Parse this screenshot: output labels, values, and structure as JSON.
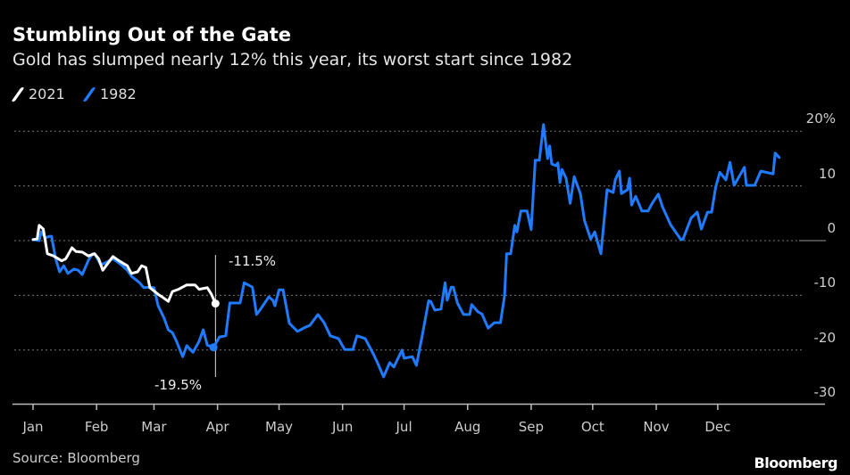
{
  "chart_data": {
    "type": "line",
    "title": "Stumbling Out of the Gate",
    "subtitle": "Gold has slumped nearly 12% this year, its worst start since 1982",
    "xlabel": "",
    "ylabel": "",
    "x_unit": "day of year",
    "ylim": [
      -30,
      20
    ],
    "y_ticks": [
      "20%",
      "10",
      "0",
      "-10",
      "-20",
      "-30"
    ],
    "y_tick_values": [
      20,
      10,
      0,
      -10,
      -20,
      -30
    ],
    "x_ticks": [
      "Jan",
      "Feb",
      "Mar",
      "Apr",
      "May",
      "Jun",
      "Jul",
      "Aug",
      "Sep",
      "Oct",
      "Nov",
      "Dec"
    ],
    "x_tick_days": [
      0,
      31,
      59,
      90,
      120,
      151,
      181,
      212,
      243,
      273,
      304,
      334
    ],
    "grid": true,
    "legend_position": "top-left",
    "series": [
      {
        "name": "2021",
        "color": "#ffffff",
        "x": [
          0,
          2,
          3,
          5,
          7,
          10,
          14,
          16,
          19,
          21,
          24,
          27,
          30,
          32,
          34,
          36,
          39,
          42,
          46,
          48,
          51,
          53,
          55,
          57,
          61,
          63,
          66,
          68,
          71,
          75,
          79,
          81,
          85,
          87,
          89
        ],
        "values": [
          0.2,
          0.3,
          2.8,
          2.1,
          -2.4,
          -2.8,
          -3.7,
          -3.3,
          -1.3,
          -2,
          -2.1,
          -2.8,
          -2.4,
          -3.3,
          -5.4,
          -4.4,
          -2.9,
          -3.7,
          -4.6,
          -6,
          -5.7,
          -4.6,
          -4.9,
          -8.6,
          -9.8,
          -10.3,
          -11.1,
          -9.3,
          -8.9,
          -8.1,
          -8.1,
          -8.9,
          -8.6,
          -9.8,
          -11.5
        ]
      },
      {
        "name": "1982",
        "color": "#1f7bff",
        "x": [
          0,
          3,
          4,
          6,
          8,
          9,
          11,
          13,
          15,
          17,
          20,
          22,
          24,
          27,
          29,
          30,
          33,
          35,
          39,
          43,
          46,
          48,
          52,
          54,
          57,
          59,
          61,
          64,
          66,
          68,
          70,
          73,
          75,
          78,
          81,
          83,
          85,
          88,
          91,
          94,
          96,
          101,
          103,
          107,
          109,
          111,
          115,
          117,
          118,
          120,
          122,
          125,
          129,
          133,
          135,
          139,
          142,
          145,
          149,
          152,
          156,
          158,
          162,
          166,
          168,
          171,
          174,
          176,
          180,
          181,
          185,
          187,
          190,
          193,
          194,
          196,
          199,
          201,
          202,
          204,
          205,
          207,
          210,
          213,
          214,
          217,
          219,
          222,
          225,
          228,
          230,
          231,
          233,
          235,
          236,
          238,
          241,
          243,
          245,
          247,
          249,
          251,
          252,
          253,
          255,
          256,
          257,
          258,
          260,
          262,
          264,
          267,
          269,
          272,
          274,
          277,
          280,
          283,
          284,
          286,
          287,
          290,
          291,
          292,
          294,
          297,
          300,
          302,
          305,
          307,
          311,
          316,
          317,
          321,
          324,
          326,
          329,
          331,
          333,
          335,
          338,
          340,
          342,
          347,
          348,
          352,
          355,
          361,
          362,
          364
        ],
        "values": [
          0.2,
          0,
          1.6,
          0.5,
          0.8,
          0.8,
          -3.3,
          -5.7,
          -4.6,
          -6,
          -5.2,
          -5.4,
          -6.2,
          -3.6,
          -2.4,
          -2.4,
          -4.4,
          -4.1,
          -3.3,
          -4.4,
          -5.4,
          -6.5,
          -7.7,
          -8.6,
          -8.5,
          -8.6,
          -11.9,
          -14.2,
          -16.3,
          -16.8,
          -18.4,
          -21.2,
          -19.2,
          -20.4,
          -18.4,
          -16.3,
          -19.1,
          -19.5,
          -17.6,
          -17.4,
          -11.4,
          -11.4,
          -7.7,
          -8.5,
          -13.5,
          -12.5,
          -10.3,
          -10.9,
          -11.9,
          -9,
          -9,
          -15.1,
          -16.6,
          -15.8,
          -15.5,
          -13.5,
          -15,
          -17.4,
          -17.9,
          -19.9,
          -19.9,
          -17.4,
          -17.9,
          -20.7,
          -22.3,
          -24.9,
          -22.3,
          -23.1,
          -20,
          -21.5,
          -21.2,
          -22.8,
          -17.1,
          -11,
          -11.1,
          -12.7,
          -12.5,
          -7.7,
          -10.9,
          -8.5,
          -8.5,
          -11.4,
          -13.5,
          -13.5,
          -11.7,
          -13,
          -13.4,
          -16,
          -15,
          -15,
          -10.1,
          -2.4,
          -2.4,
          2.8,
          1.6,
          5.4,
          5.4,
          2,
          14.7,
          14.7,
          21.2,
          15,
          17.3,
          14,
          13.7,
          14.2,
          10.6,
          13,
          11.4,
          6.8,
          11.7,
          8.6,
          3.7,
          0.3,
          1.6,
          -2.4,
          9.3,
          8.8,
          11.1,
          12.7,
          8.6,
          9.3,
          11.4,
          6.5,
          8.1,
          5.4,
          5.4,
          6.8,
          8.5,
          6.2,
          2.9,
          0.2,
          0.2,
          4.1,
          5.2,
          2.1,
          5.2,
          5.2,
          9.8,
          12.5,
          11.1,
          14.3,
          10.1,
          13.4,
          10.1,
          10.1,
          12.7,
          12.2,
          16,
          15.2
        ]
      }
    ],
    "annotations": [
      {
        "text": "-11.5%",
        "x": 89,
        "value": -11.5,
        "series": "2021"
      },
      {
        "text": "-19.5%",
        "x": 88,
        "value": -19.5,
        "series": "1982"
      }
    ],
    "source": "Source: Bloomberg",
    "logo": "Bloomberg"
  }
}
